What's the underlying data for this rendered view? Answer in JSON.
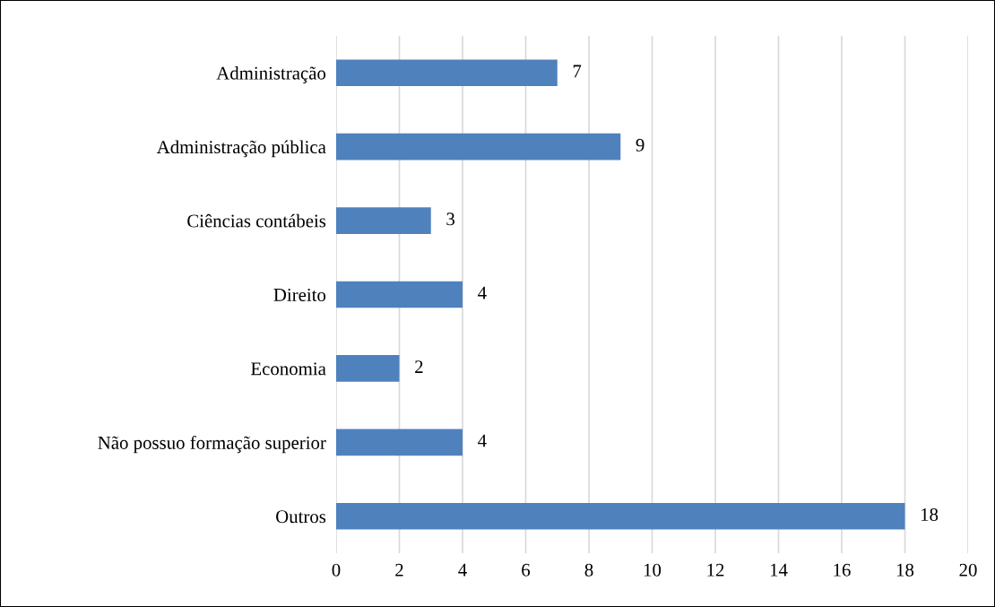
{
  "chart_data": {
    "type": "bar",
    "orientation": "horizontal",
    "categories": [
      "Administração",
      "Administração pública",
      "Ciências contábeis",
      "Direito",
      "Economia",
      "Não possuo formação superior",
      "Outros"
    ],
    "values": [
      7,
      9,
      3,
      4,
      2,
      4,
      18
    ],
    "color": "#4f81bd",
    "xlim": [
      0,
      20
    ],
    "xticks": [
      0,
      2,
      4,
      6,
      8,
      10,
      12,
      14,
      16,
      18,
      20
    ],
    "grid": "x",
    "data_labels": true
  }
}
